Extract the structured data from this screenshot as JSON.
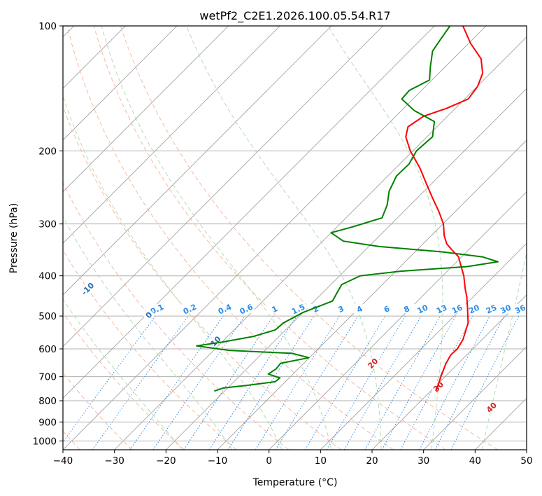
{
  "chart_data": {
    "type": "line",
    "title": "wetPf2_C2E1.2026.100.05.54.R17",
    "xlabel": "Temperature (°C)",
    "ylabel": "Pressure (hPa)",
    "xlim": [
      -40,
      50
    ],
    "ylim": [
      1050,
      100
    ],
    "yscale": "log",
    "skew_degrees": 45,
    "grid": true,
    "x_ticks": [
      -40,
      -30,
      -20,
      -10,
      0,
      10,
      20,
      30,
      40,
      50
    ],
    "y_ticks": [
      100,
      200,
      300,
      400,
      500,
      600,
      700,
      800,
      900,
      1000
    ],
    "series": [
      {
        "role": "temperature",
        "color": "#ff0000",
        "points": [
          [
            758,
            21.0
          ],
          [
            740,
            20.5
          ],
          [
            700,
            19.2
          ],
          [
            650,
            17.6
          ],
          [
            620,
            16.9
          ],
          [
            600,
            17.0
          ],
          [
            570,
            16.3
          ],
          [
            520,
            14.1
          ],
          [
            480,
            11.2
          ],
          [
            450,
            8.8
          ],
          [
            430,
            6.9
          ],
          [
            400,
            4.1
          ],
          [
            380,
            1.8
          ],
          [
            360,
            -0.6
          ],
          [
            345,
            -3.5
          ],
          [
            335,
            -5.4
          ],
          [
            320,
            -7.5
          ],
          [
            300,
            -9.9
          ],
          [
            280,
            -13.2
          ],
          [
            260,
            -17.0
          ],
          [
            240,
            -21.0
          ],
          [
            220,
            -25.3
          ],
          [
            200,
            -30.5
          ],
          [
            185,
            -34.1
          ],
          [
            175,
            -35.6
          ],
          [
            165,
            -34.6
          ],
          [
            158,
            -31.7
          ],
          [
            150,
            -29.3
          ],
          [
            140,
            -29.9
          ],
          [
            130,
            -31.5
          ],
          [
            120,
            -34.6
          ],
          [
            110,
            -39.7
          ],
          [
            100,
            -44.5
          ]
        ]
      },
      {
        "role": "dewpoint",
        "color": "#008000",
        "points": [
          [
            758,
            -22.0
          ],
          [
            745,
            -20.8
          ],
          [
            735,
            -16.9
          ],
          [
            720,
            -12.0
          ],
          [
            705,
            -11.8
          ],
          [
            690,
            -14.8
          ],
          [
            670,
            -14.3
          ],
          [
            650,
            -14.5
          ],
          [
            630,
            -10.1
          ],
          [
            615,
            -14.2
          ],
          [
            605,
            -27.0
          ],
          [
            590,
            -34.2
          ],
          [
            578,
            -30.0
          ],
          [
            560,
            -25.0
          ],
          [
            540,
            -22.0
          ],
          [
            520,
            -21.8
          ],
          [
            490,
            -20.0
          ],
          [
            460,
            -16.5
          ],
          [
            440,
            -17.2
          ],
          [
            420,
            -17.9
          ],
          [
            400,
            -16.0
          ],
          [
            390,
            -9.0
          ],
          [
            380,
            3.0
          ],
          [
            370,
            8.0
          ],
          [
            360,
            4.0
          ],
          [
            350,
            -5.0
          ],
          [
            340,
            -18.0
          ],
          [
            330,
            -26.0
          ],
          [
            315,
            -30.0
          ],
          [
            305,
            -27.0
          ],
          [
            290,
            -23.0
          ],
          [
            270,
            -24.5
          ],
          [
            250,
            -26.8
          ],
          [
            230,
            -28.3
          ],
          [
            215,
            -28.2
          ],
          [
            200,
            -29.3
          ],
          [
            185,
            -28.9
          ],
          [
            170,
            -31.5
          ],
          [
            160,
            -37.5
          ],
          [
            150,
            -42.2
          ],
          [
            143,
            -42.4
          ],
          [
            135,
            -40.5
          ],
          [
            125,
            -43.0
          ],
          [
            115,
            -45.5
          ],
          [
            108,
            -46.2
          ],
          [
            100,
            -47.0
          ]
        ]
      }
    ],
    "dry_adiabats_C": [
      -100,
      -90,
      -80,
      -70,
      -60,
      -50,
      -40,
      -30,
      -20,
      -10,
      0,
      10,
      20,
      30,
      40
    ],
    "moist_adiabats_C": [
      -20,
      -10,
      0,
      10,
      20,
      30,
      40
    ],
    "mixing_ratios_gkg": [
      "0.1",
      "0.2",
      "0.4",
      "0.6",
      "1",
      "1.5",
      "2",
      "3",
      "4",
      "6",
      "8",
      "10",
      "13",
      "16",
      "20",
      "25",
      "30",
      "36"
    ],
    "colors": {
      "temperature": "#ff0000",
      "dewpoint": "#008000",
      "isotherm": "#9a9a9a",
      "isobar": "#b0b0b0",
      "dry_adiabat": "#f7b9a0",
      "moist_adiabat": "#b4dcb4",
      "mixing_ratio": "#3a8de0",
      "dry_label": "#2b6ea8",
      "moist_label": "#cc2222",
      "mixing_label": "#2a8de8",
      "boundary": "#e8cfb6"
    }
  }
}
